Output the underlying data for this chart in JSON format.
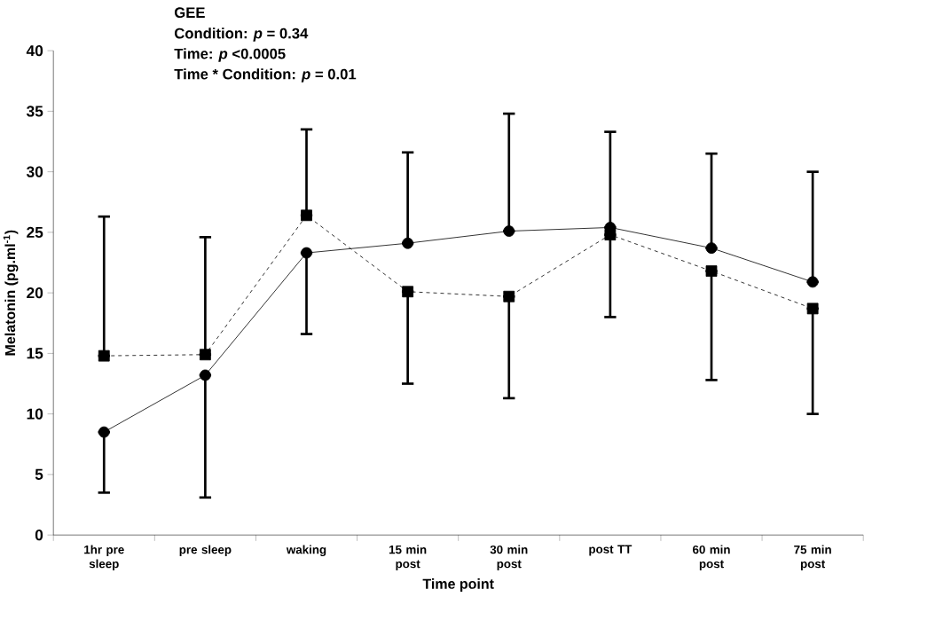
{
  "chart_data": {
    "type": "line",
    "xlabel": "Time point",
    "ylabel": "Melatonin (pg.ml$^{-1}$)",
    "annotations": [
      "**GEE**",
      "Condition: *p* = 0.34",
      "Time: *p* <0.0005",
      "Time * Condition: *p* = 0.01"
    ],
    "categories": [
      "1hr pre sleep",
      "pre sleep",
      "waking",
      "15 min post",
      "30 min post",
      "post TT",
      "60 min post",
      "75 min post"
    ],
    "ylim": [
      0,
      40
    ],
    "yticks": [
      0,
      5,
      10,
      15,
      20,
      25,
      30,
      35,
      40
    ],
    "grid": false,
    "series": [
      {
        "color": "#000000",
        "marker": "circle",
        "line_style": "solid",
        "values": [
          8.5,
          13.2,
          23.3,
          24.1,
          25.1,
          25.4,
          23.7,
          20.9
        ],
        "errors": [
          [
            3.5,
            8.5
          ],
          [
            3.1,
            13.2
          ],
          [
            16.6,
            23.3
          ],
          [
            24.1,
            31.6
          ],
          [
            25.1,
            34.8
          ],
          [
            25.4,
            33.3
          ],
          [
            23.7,
            31.5
          ],
          [
            20.9,
            30.0
          ]
        ]
      },
      {
        "color": "#000000",
        "marker": "square",
        "line_style": "dashed",
        "values": [
          14.8,
          14.9,
          26.4,
          20.1,
          19.7,
          24.8,
          21.8,
          18.7
        ],
        "errors": [
          [
            14.8,
            26.3
          ],
          [
            14.9,
            24.6
          ],
          [
            26.4,
            33.5
          ],
          [
            12.5,
            20.1
          ],
          [
            11.3,
            19.7
          ],
          [
            18.0,
            24.8
          ],
          [
            12.8,
            21.8
          ],
          [
            10.0,
            18.7
          ]
        ]
      }
    ]
  }
}
